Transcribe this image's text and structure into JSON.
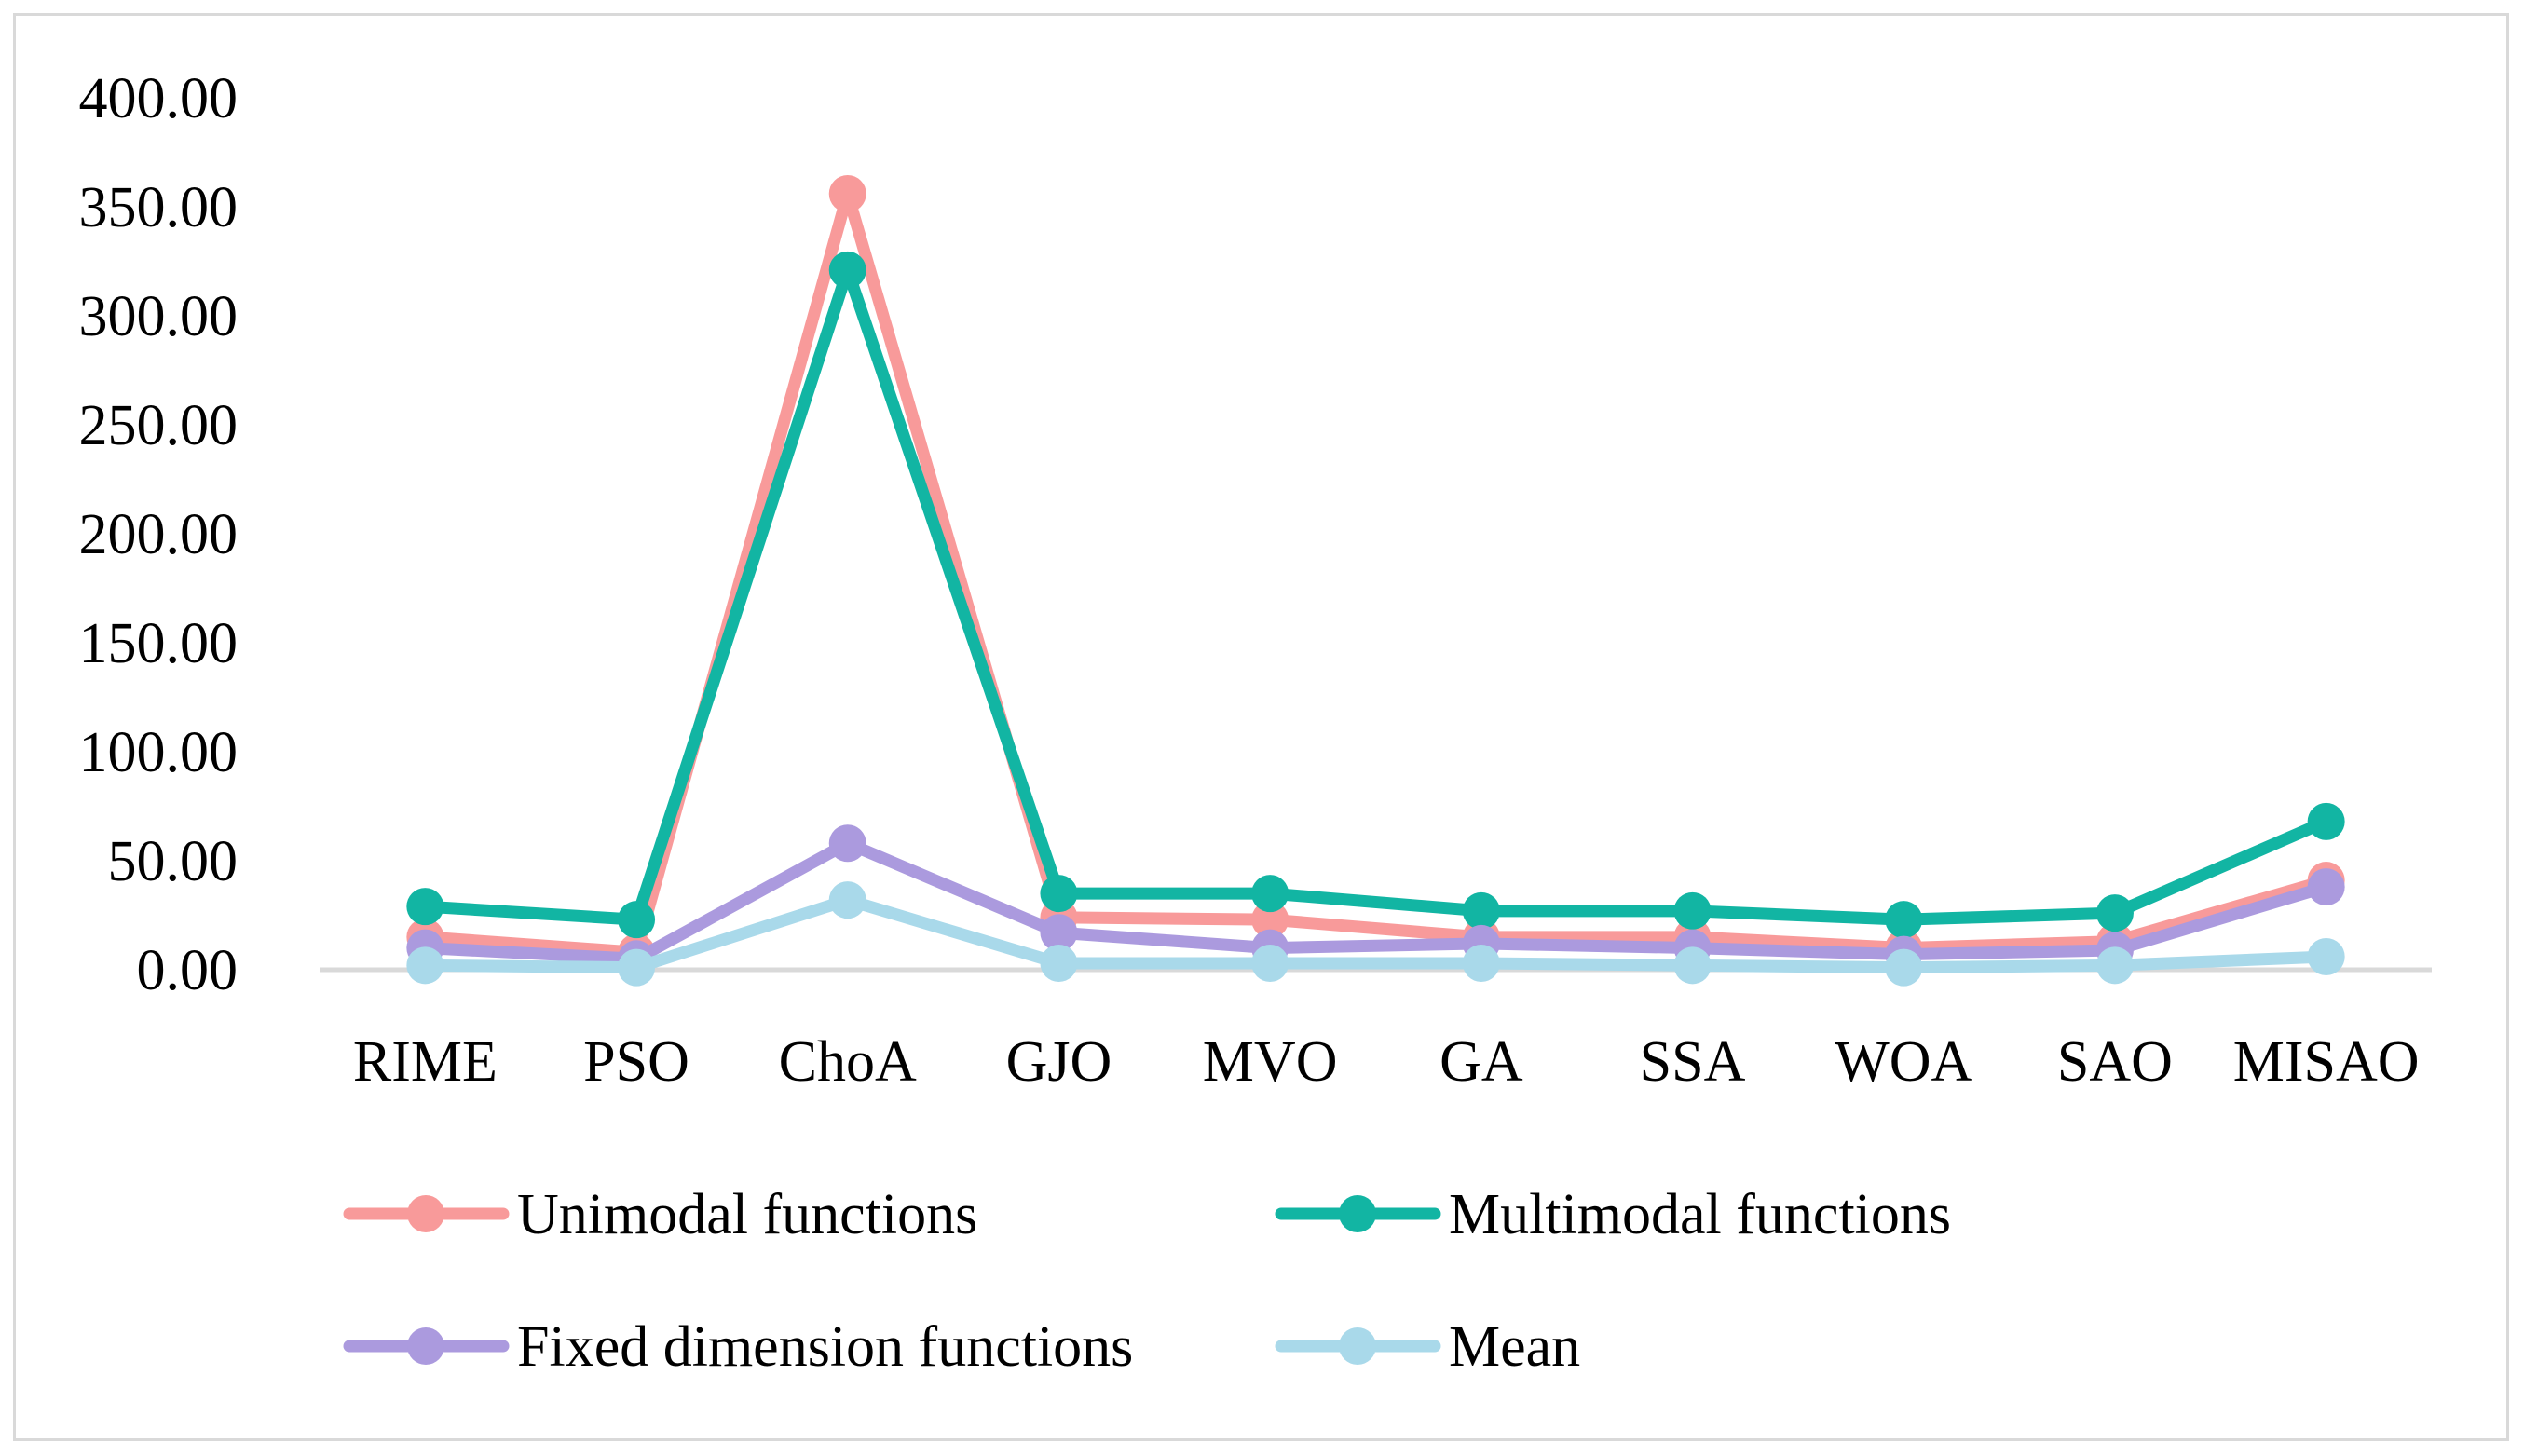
{
  "chart_data": {
    "type": "line",
    "title": "",
    "xlabel": "",
    "ylabel": "",
    "categories": [
      "RIME",
      "PSO",
      "ChoA",
      "GJO",
      "MVO",
      "GA",
      "SSA",
      "WOA",
      "SAO",
      "MISAO"
    ],
    "yticks": [
      "0.00",
      "50.00",
      "100.00",
      "150.00",
      "200.00",
      "250.00",
      "300.00",
      "350.00",
      "400.00"
    ],
    "ylim": [
      0,
      400
    ],
    "grid": false,
    "legend_position": "bottom",
    "series": [
      {
        "name": "Unimodal functions",
        "color": "#f89a9a",
        "values": [
          15,
          8,
          356,
          24,
          23,
          15,
          15,
          10,
          13,
          41
        ]
      },
      {
        "name": "Multimodal functions",
        "color": "#12b5a3",
        "values": [
          29,
          23,
          321,
          35,
          35,
          27,
          27,
          23,
          26,
          68
        ]
      },
      {
        "name": "Fixed dimension functions",
        "color": "#ab9ade",
        "values": [
          10,
          5,
          58,
          17,
          10,
          12,
          10,
          7,
          9,
          38
        ]
      },
      {
        "name": "Mean",
        "color": "#a9d9ea",
        "values": [
          2,
          1,
          32,
          3,
          3,
          3,
          2,
          1,
          2,
          6
        ]
      }
    ]
  }
}
